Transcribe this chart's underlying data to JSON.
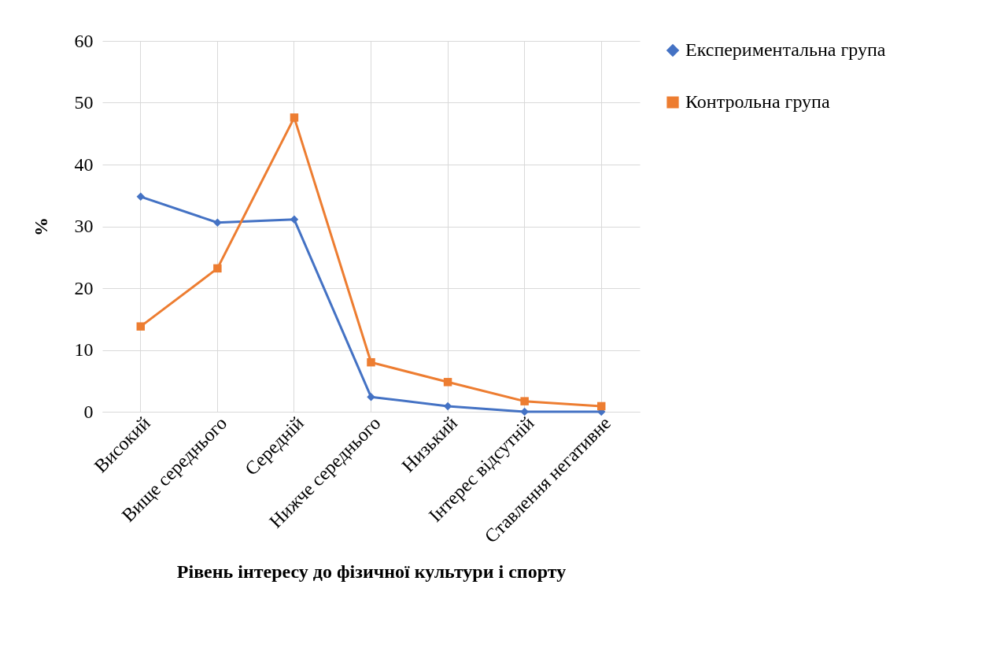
{
  "chart_data": {
    "type": "line",
    "xlabel": "Рівень інтересу до фізичної культури і спорту",
    "ylabel": "%",
    "categories": [
      "Високий",
      "Вище середнього",
      "Середній",
      "Нижче середнього",
      "Низький",
      "Інтерес відсутній",
      "Ставлення негативне"
    ],
    "series": [
      {
        "name": "Експериментальна група",
        "color": "#4472c4",
        "marker": "diamond",
        "values": [
          34.8,
          30.6,
          31.1,
          2.4,
          0.9,
          0,
          0
        ]
      },
      {
        "name": "Контрольна група",
        "color": "#ed7d31",
        "marker": "square",
        "values": [
          13.8,
          23.2,
          47.6,
          8.0,
          4.8,
          1.7,
          0.9
        ]
      }
    ],
    "ylim": [
      0,
      60
    ],
    "yticks": [
      0,
      10,
      20,
      30,
      40,
      50,
      60
    ],
    "grid": true,
    "legend": "right",
    "line_style": "solid"
  }
}
